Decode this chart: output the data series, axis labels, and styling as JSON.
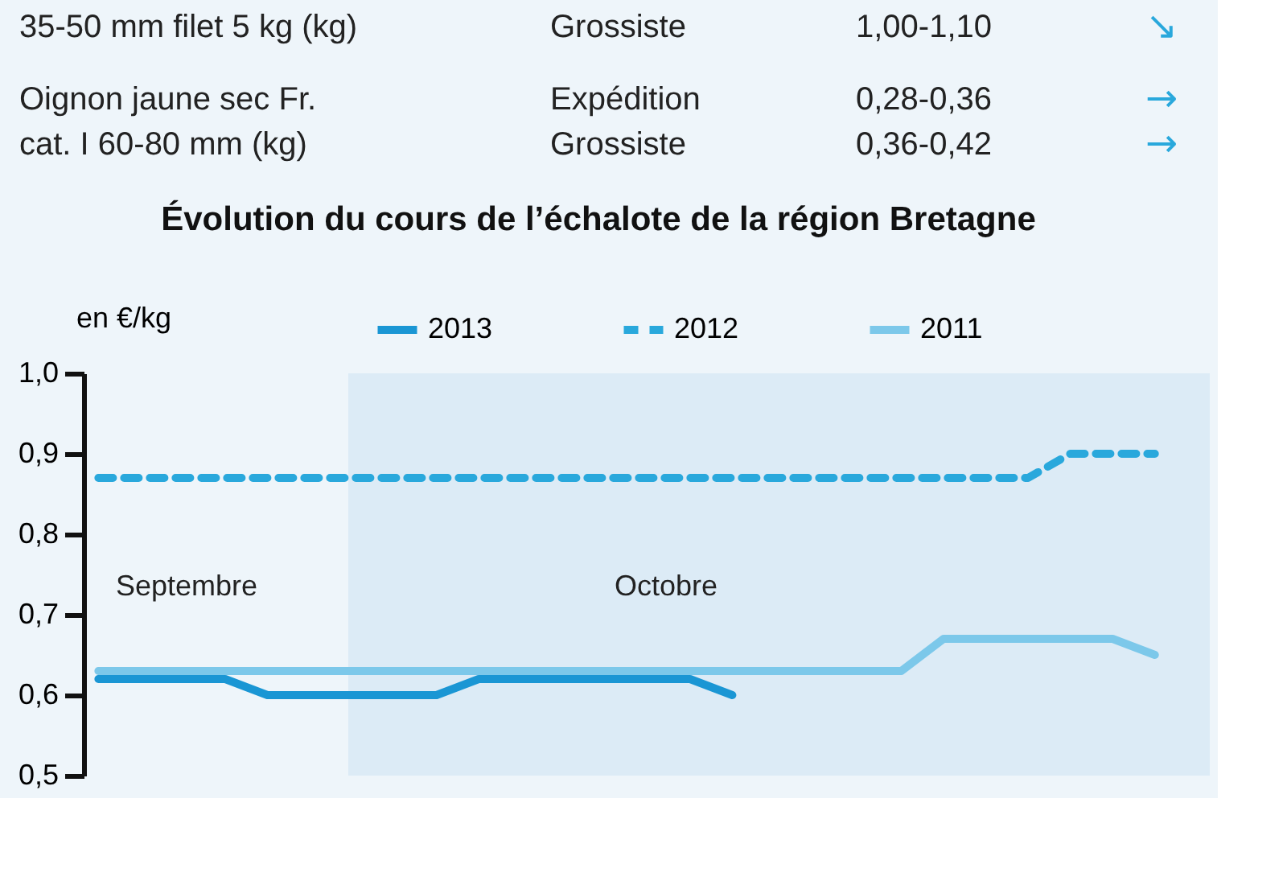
{
  "chart_data": {
    "type": "line",
    "title": "Évolution du cours de l’échalote de la région Bretagne",
    "ylabel": "en €/kg",
    "categories": [
      null,
      null,
      null,
      null,
      null,
      null,
      null,
      null,
      null,
      null,
      null,
      null,
      null,
      null,
      null,
      null,
      null,
      null,
      null,
      null,
      null,
      null,
      null,
      null,
      null,
      null
    ],
    "ylim": [
      0.5,
      1.0
    ],
    "yticks": [
      {
        "value": 0.5,
        "label": "0,5"
      },
      {
        "value": 0.6,
        "label": "0,6"
      },
      {
        "value": 0.7,
        "label": "0,7"
      },
      {
        "value": 0.8,
        "label": "0,8"
      },
      {
        "value": 0.9,
        "label": "0,9"
      },
      {
        "value": 1.0,
        "label": "1,0"
      }
    ],
    "tick_labels": "y",
    "grid": false,
    "legend": "top",
    "series": [
      {
        "name": "2013",
        "color": "#1a96d4",
        "line_style": "solid",
        "values": [
          0.62,
          0.62,
          0.62,
          0.62,
          0.6,
          0.6,
          0.6,
          0.6,
          0.6,
          0.62,
          0.62,
          0.62,
          0.62,
          0.62,
          0.62,
          0.6,
          null,
          null,
          null,
          null,
          null,
          null,
          null,
          null,
          null,
          null
        ]
      },
      {
        "name": "2012",
        "color": "#29a8dc",
        "line_style": "dashed",
        "values": [
          0.87,
          0.87,
          0.87,
          0.87,
          0.87,
          0.87,
          0.87,
          0.87,
          0.87,
          0.87,
          0.87,
          0.87,
          0.87,
          0.87,
          0.87,
          0.87,
          0.87,
          0.87,
          0.87,
          0.87,
          0.87,
          0.87,
          0.87,
          0.9,
          0.9,
          0.9
        ]
      },
      {
        "name": "2011",
        "color": "#7cc8ea",
        "line_style": "solid",
        "values": [
          0.63,
          0.63,
          0.63,
          0.63,
          0.63,
          0.63,
          0.63,
          0.63,
          0.63,
          0.63,
          0.63,
          0.63,
          0.63,
          0.63,
          0.63,
          0.63,
          0.63,
          0.63,
          0.63,
          0.63,
          0.67,
          0.67,
          0.67,
          0.67,
          0.67,
          0.65
        ]
      }
    ],
    "annotations": [
      "35-50 mm filet 5 kg (kg)",
      "Grossiste",
      "1,00-1,10",
      "↘",
      "Oignon jaune sec Fr.",
      "Expédition",
      "0,28-0,36",
      "→",
      "cat. I 60-80 mm (kg)",
      "Grossiste",
      "0,36-0,42",
      "→",
      "Septembre",
      "Octobre"
    ]
  }
}
